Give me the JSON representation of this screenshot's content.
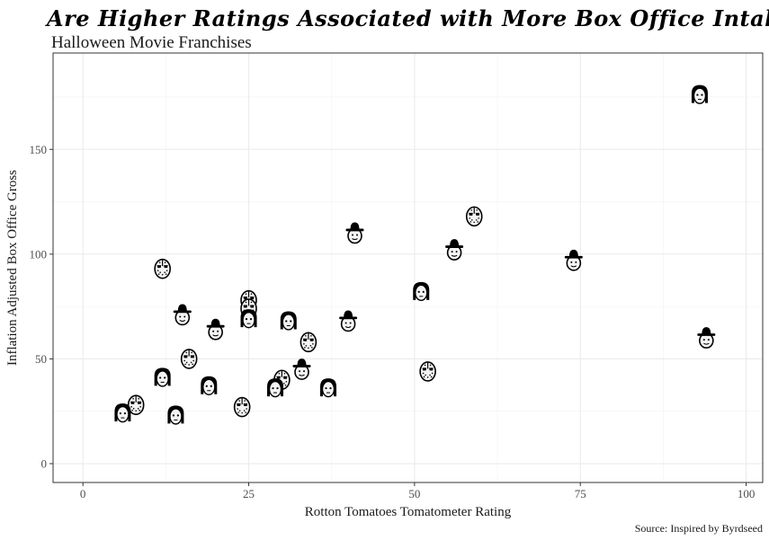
{
  "chart_data": {
    "type": "scatter",
    "title": "Are Higher Ratings Associated with More Box Office Intake?",
    "subtitle": "Halloween Movie Franchises",
    "xlabel": "Rotton Tomatoes Tomatometer Rating",
    "ylabel": "Inflation Adjusted Box Office Gross",
    "caption": "Source: Inspired by Byrdseed",
    "xlim": [
      -4.5,
      102.5
    ],
    "ylim": [
      -9,
      196
    ],
    "x_ticks": [
      0,
      25,
      50,
      75,
      100
    ],
    "y_ticks": [
      0,
      50,
      100,
      150
    ],
    "x_minor": [
      12.5,
      37.5,
      62.5,
      87.5
    ],
    "y_minor": [
      25,
      75,
      125,
      175
    ],
    "grid": true,
    "points": [
      {
        "x": 93,
        "y": 176,
        "icon": "myers-mask-icon"
      },
      {
        "x": 59,
        "y": 118,
        "icon": "hockey-mask-icon"
      },
      {
        "x": 41,
        "y": 110,
        "icon": "fedora-face-icon"
      },
      {
        "x": 56,
        "y": 102,
        "icon": "fedora-face-icon"
      },
      {
        "x": 74,
        "y": 97,
        "icon": "fedora-face-icon"
      },
      {
        "x": 12,
        "y": 93,
        "icon": "hockey-mask-icon"
      },
      {
        "x": 51,
        "y": 82,
        "icon": "myers-mask-icon"
      },
      {
        "x": 25,
        "y": 78,
        "icon": "hockey-mask-icon"
      },
      {
        "x": 25,
        "y": 74,
        "icon": "hockey-mask-icon"
      },
      {
        "x": 15,
        "y": 71,
        "icon": "fedora-face-icon"
      },
      {
        "x": 25,
        "y": 69,
        "icon": "myers-mask-icon"
      },
      {
        "x": 31,
        "y": 68,
        "icon": "myers-mask-icon"
      },
      {
        "x": 40,
        "y": 68,
        "icon": "fedora-face-icon"
      },
      {
        "x": 20,
        "y": 64,
        "icon": "fedora-face-icon"
      },
      {
        "x": 94,
        "y": 60,
        "icon": "fedora-face-icon"
      },
      {
        "x": 34,
        "y": 58,
        "icon": "hockey-mask-icon"
      },
      {
        "x": 16,
        "y": 50,
        "icon": "hockey-mask-icon"
      },
      {
        "x": 33,
        "y": 45,
        "icon": "fedora-face-icon"
      },
      {
        "x": 52,
        "y": 44,
        "icon": "hockey-mask-icon"
      },
      {
        "x": 12,
        "y": 41,
        "icon": "myers-mask-icon"
      },
      {
        "x": 30,
        "y": 40,
        "icon": "hockey-mask-icon"
      },
      {
        "x": 19,
        "y": 37,
        "icon": "myers-mask-icon"
      },
      {
        "x": 29,
        "y": 36,
        "icon": "myers-mask-icon"
      },
      {
        "x": 37,
        "y": 36,
        "icon": "myers-mask-icon"
      },
      {
        "x": 8,
        "y": 28,
        "icon": "hockey-mask-icon"
      },
      {
        "x": 24,
        "y": 27,
        "icon": "hockey-mask-icon"
      },
      {
        "x": 6,
        "y": 24,
        "icon": "myers-mask-icon"
      },
      {
        "x": 14,
        "y": 23,
        "icon": "myers-mask-icon"
      }
    ]
  }
}
